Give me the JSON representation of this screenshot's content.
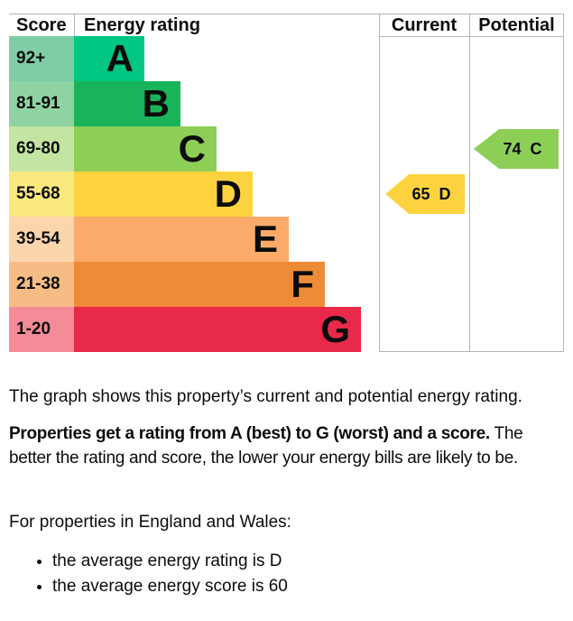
{
  "chart": {
    "headers": {
      "score": "Score",
      "rating": "Energy rating",
      "current": "Current",
      "potential": "Potential"
    },
    "bands": [
      {
        "range": "92+",
        "letter": "A",
        "bar_color": "#00c781",
        "score_bg": "#7fcda5"
      },
      {
        "range": "81-91",
        "letter": "B",
        "bar_color": "#19b459",
        "score_bg": "#8ed3a1"
      },
      {
        "range": "69-80",
        "letter": "C",
        "bar_color": "#8dce57",
        "score_bg": "#c4e5a2"
      },
      {
        "range": "55-68",
        "letter": "D",
        "bar_color": "#fcd33f",
        "score_bg": "#fbe87e"
      },
      {
        "range": "39-54",
        "letter": "E",
        "bar_color": "#fbaa69",
        "score_bg": "#fdd5ac"
      },
      {
        "range": "21-38",
        "letter": "F",
        "bar_color": "#ee8b37",
        "score_bg": "#f6bc85"
      },
      {
        "range": "1-20",
        "letter": "G",
        "bar_color": "#e9294a",
        "score_bg": "#f58b97"
      }
    ],
    "current": {
      "label": "65  D",
      "score": 65,
      "rating": "D",
      "band_index": 3,
      "color": "#fcd33f"
    },
    "potential": {
      "label": "74  C",
      "score": 74,
      "rating": "C",
      "band_index": 2,
      "color": "#8dce57"
    }
  },
  "chart_data": {
    "type": "bar",
    "title": "Energy rating",
    "columns": [
      "Score",
      "Energy rating",
      "Current",
      "Potential"
    ],
    "categories": [
      "A",
      "B",
      "C",
      "D",
      "E",
      "F",
      "G"
    ],
    "score_ranges": [
      "92+",
      "81-91",
      "69-80",
      "55-68",
      "39-54",
      "21-38",
      "1-20"
    ],
    "bar_colors": [
      "#00c781",
      "#19b459",
      "#8dce57",
      "#fcd33f",
      "#fbaa69",
      "#ee8b37",
      "#e9294a"
    ],
    "bar_relative_widths": [
      1,
      2,
      3,
      4,
      5,
      6,
      7
    ],
    "current": {
      "score": 65,
      "rating": "D"
    },
    "potential": {
      "score": 74,
      "rating": "C"
    },
    "legend_position": "none",
    "grid": false
  },
  "text": {
    "paragraph1": "The graph shows this property’s current and potential energy rating.",
    "paragraph2_bold": "Properties get a rating from A (best) to G (worst) and a score.",
    "paragraph2_rest": " The better the rating and score, the lower your energy bills are likely to be.",
    "paragraph3": "For properties in England and Wales:",
    "bullets": [
      "the average energy rating is D",
      "the average energy score is 60"
    ]
  },
  "colors": {
    "border": "#b1b4b6",
    "text": "#0b0c0c"
  }
}
